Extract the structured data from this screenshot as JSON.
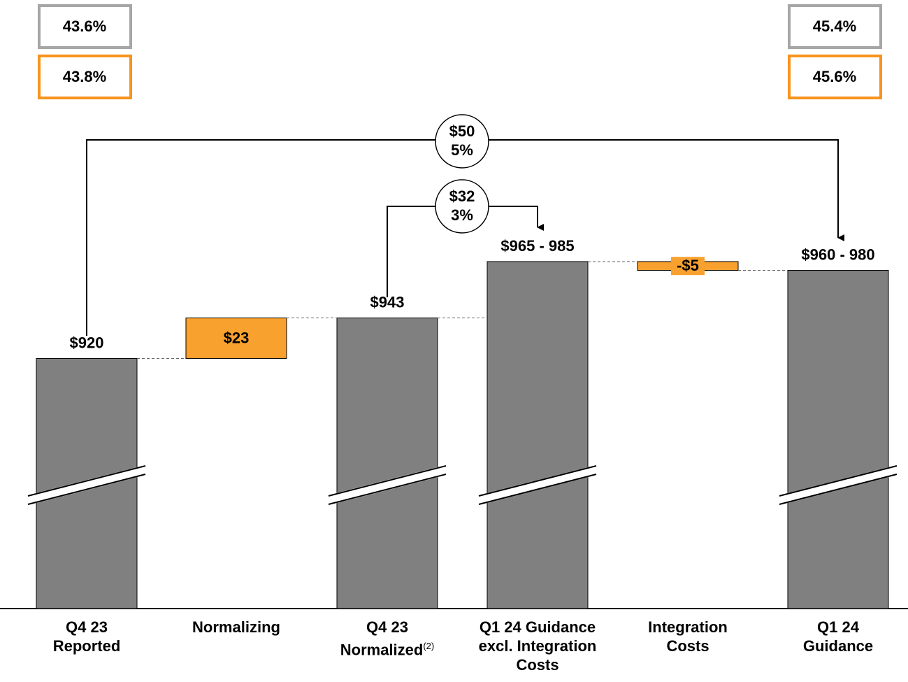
{
  "chart_data": {
    "type": "waterfall",
    "categories": [
      "Q4 23\nReported",
      "Normalizing",
      "Q4 23\nNormalized",
      "Q1 24 Guidance\nexcl. Integration\nCosts",
      "Integration\nCosts",
      "Q1 24\nGuidance"
    ],
    "category_notes": [
      null,
      null,
      "(2)",
      null,
      null,
      null
    ],
    "kinds": [
      "total",
      "delta",
      "total",
      "total",
      "delta",
      "total"
    ],
    "values": [
      920,
      23,
      943,
      null,
      -5,
      null
    ],
    "ranges": [
      null,
      null,
      null,
      [
        965,
        985
      ],
      null,
      [
        960,
        980
      ]
    ],
    "value_labels": [
      "$920",
      "$23",
      "$943",
      "$965 - 985",
      "-$5",
      "$960 - 980"
    ],
    "total_color": "#808080",
    "delta_color": "#f9a12e",
    "ylim": [
      778,
      1056
    ],
    "axis_break": true,
    "bridges": [
      {
        "lines": [
          "$50",
          "5%"
        ]
      },
      {
        "lines": [
          "$32",
          "3%"
        ]
      }
    ],
    "margin_boxes": {
      "left": [
        {
          "label": "43.6%",
          "color": "#a6a6a6"
        },
        {
          "label": "43.8%",
          "color": "#f7941d"
        }
      ],
      "right": [
        {
          "label": "45.4%",
          "color": "#a6a6a6"
        },
        {
          "label": "45.6%",
          "color": "#f7941d"
        }
      ]
    }
  }
}
